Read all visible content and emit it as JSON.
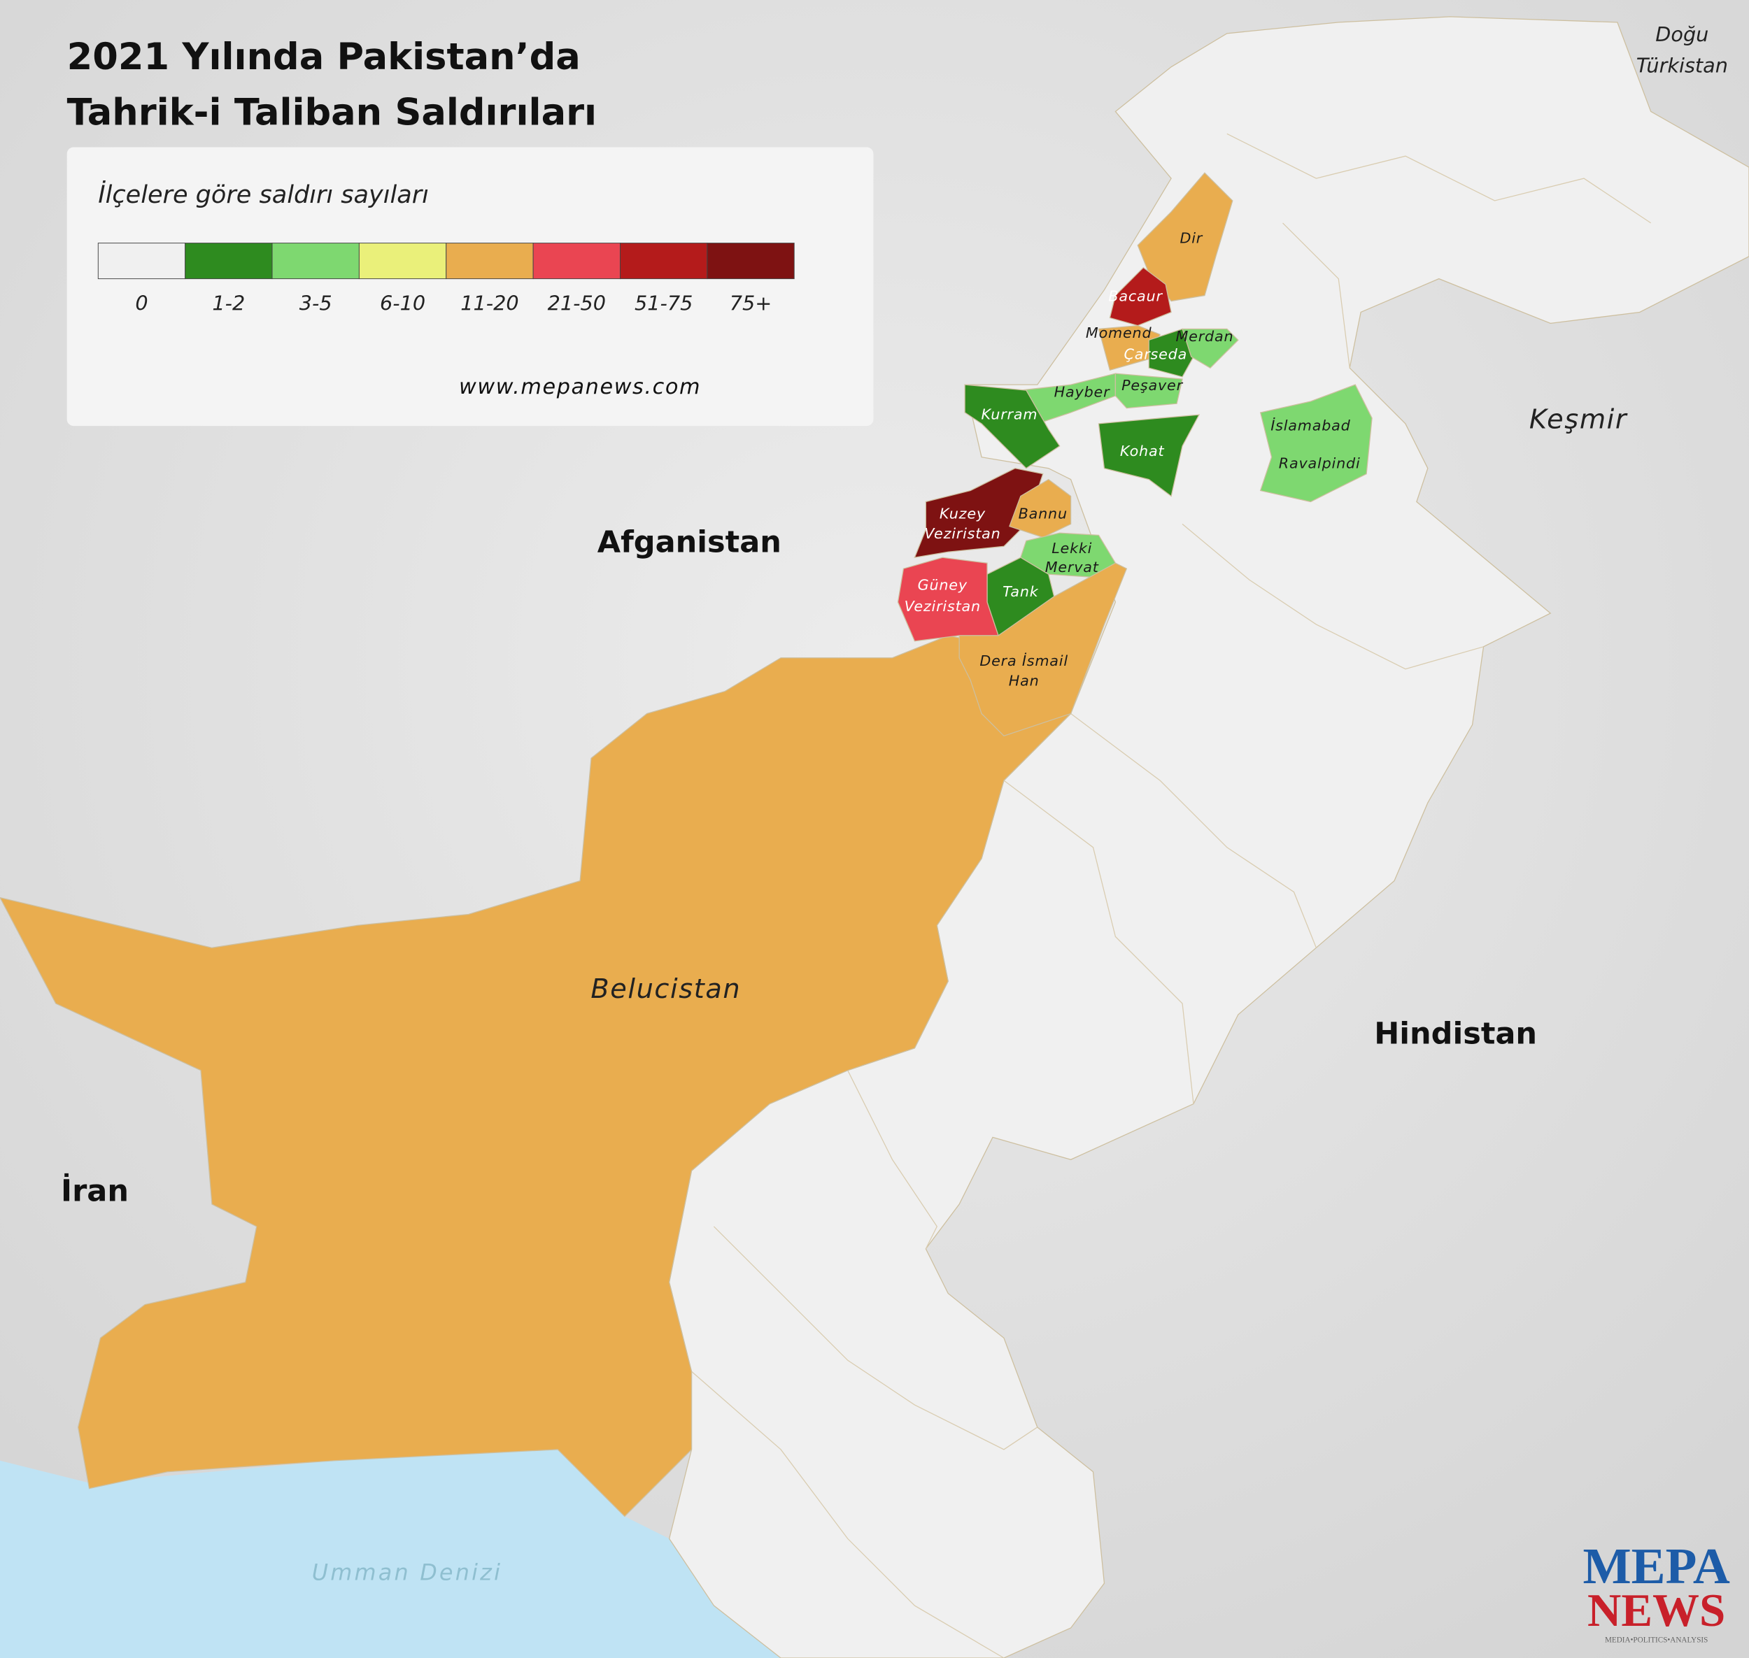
{
  "title": [
    "2021 Yılında Pakistan’da",
    "Tahrik-i Taliban Saldırıları"
  ],
  "legend": {
    "subtitle": "İlçelere göre saldırı sayıları",
    "items": [
      {
        "label": "0",
        "color": "#f0f0f0"
      },
      {
        "label": "1-2",
        "color": "#2e8b1f"
      },
      {
        "label": "3-5",
        "color": "#7ed870"
      },
      {
        "label": "6-10",
        "color": "#eaf07a"
      },
      {
        "label": "11-20",
        "color": "#e9ad4f"
      },
      {
        "label": "21-50",
        "color": "#ea4552"
      },
      {
        "label": "51-75",
        "color": "#b41b1b"
      },
      {
        "label": "75+",
        "color": "#7e1212"
      }
    ],
    "source": "www.mepanews.com"
  },
  "map": {
    "countries": [
      "Afganistan",
      "Hindistan",
      "İran"
    ],
    "regions": [
      "Keşmir",
      "Belucistan",
      [
        "Doğu",
        "Türkistan"
      ]
    ],
    "sea": "Umman Denizi",
    "pakistan_color": "#f0f0f0",
    "belucistan_color": "#e9ad4f",
    "sea_color": "#bfe3f4",
    "districts": [
      {
        "label": "Dir",
        "color": "#e9ad4f"
      },
      {
        "label": "Bacaur",
        "color": "#b41b1b"
      },
      {
        "label": "Momend",
        "color": "#e9ad4f"
      },
      {
        "label": "Çarseda",
        "color": "#2e8b1f"
      },
      {
        "label": "Merdan",
        "color": "#7ed870"
      },
      {
        "label": "Hayber",
        "color": "#7ed870"
      },
      {
        "label": "Peşaver",
        "color": "#7ed870"
      },
      {
        "label": "Kurram",
        "color": "#2e8b1f"
      },
      {
        "label": "Kohat",
        "color": "#2e8b1f"
      },
      {
        "label": "İslamabad",
        "color": "#7ed870"
      },
      {
        "label": "Ravalpindi",
        "color": "#7ed870"
      },
      {
        "label": [
          "Kuzey",
          "Veziristan"
        ],
        "color": "#7e1212"
      },
      {
        "label": "Bannu",
        "color": "#e9ad4f"
      },
      {
        "label": [
          "Lekki",
          "Mervat"
        ],
        "color": "#7ed870"
      },
      {
        "label": "Tank",
        "color": "#2e8b1f"
      },
      {
        "label": [
          "Güney",
          "Veziristan"
        ],
        "color": "#ea4552"
      },
      {
        "label": [
          "Dera İsmail",
          "Han"
        ],
        "color": "#e9ad4f"
      }
    ]
  },
  "logo": {
    "top": "MEPA",
    "bottom": "NEWS",
    "tagline": "MEDIA•POLITICS•ANALYSIS"
  }
}
